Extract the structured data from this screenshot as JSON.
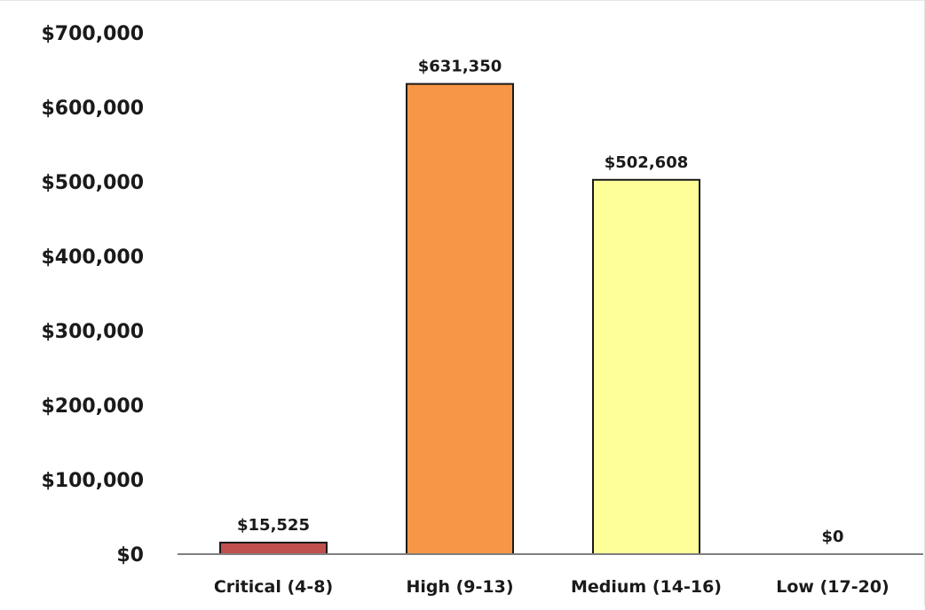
{
  "chart_data": {
    "type": "bar",
    "title": "",
    "xlabel": "",
    "ylabel": "",
    "categories": [
      "Critical (4-8)",
      "High (9-13)",
      "Medium (14-16)",
      "Low (17-20)"
    ],
    "values": [
      15525,
      631350,
      502608,
      0
    ],
    "data_labels": [
      "$15,525",
      "$631,350",
      "$502,608",
      "$0"
    ],
    "bar_colors": [
      "#c0504d",
      "#f79646",
      "#ffff99",
      "#ffff99"
    ],
    "ylim": [
      0,
      700000
    ],
    "yticks": [
      0,
      100000,
      200000,
      300000,
      400000,
      500000,
      600000,
      700000
    ],
    "ytick_labels": [
      "$0",
      "$100,000",
      "$200,000",
      "$300,000",
      "$400,000",
      "$500,000",
      "$600,000",
      "$700,000"
    ],
    "grid": false,
    "legend": "none"
  }
}
